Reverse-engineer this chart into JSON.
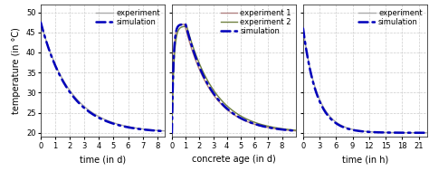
{
  "panel1": {
    "xlabel": "time (in d)",
    "xlim": [
      0,
      8.5
    ],
    "ylim": [
      19,
      52
    ],
    "xticks": [
      0,
      1,
      2,
      3,
      4,
      5,
      6,
      7,
      8
    ],
    "yticks": [
      20,
      25,
      30,
      35,
      40,
      45,
      50
    ],
    "t0": 47.5,
    "t_ambient": 20.0,
    "decay_exp": 0.48,
    "decay_sim": 0.5,
    "legend": [
      [
        "experiment",
        "#aaaaaa",
        "-",
        1.0
      ],
      [
        "simulation",
        "#0000bb",
        "-.",
        1.8
      ]
    ]
  },
  "panel2": {
    "xlabel": "concrete age (in d)",
    "xlim": [
      0,
      9.0
    ],
    "ylim": [
      19,
      52
    ],
    "xticks": [
      0,
      1,
      2,
      3,
      4,
      5,
      6,
      7,
      8
    ],
    "yticks": [
      20,
      25,
      30,
      35,
      40,
      45,
      50
    ],
    "peak_time": 1.0,
    "peak_temp1": 47.0,
    "peak_temp2": 46.5,
    "peak_temp_sim": 47.0,
    "t_ambient": 20.0,
    "rise_rate1": 9.0,
    "rise_rate2": 7.0,
    "decay_rate1": 0.5,
    "decay_rate2": 0.47,
    "decay_rate_sim": 0.5,
    "legend": [
      [
        "experiment 1",
        "#b08080",
        "-",
        1.0
      ],
      [
        "experiment 2",
        "#708040",
        "-",
        1.0
      ],
      [
        "simulation",
        "#0000bb",
        "-.",
        1.8
      ]
    ]
  },
  "panel3": {
    "xlabel": "time (in h)",
    "xlim": [
      0,
      22.5
    ],
    "ylim": [
      19,
      52
    ],
    "xticks": [
      0,
      3,
      6,
      9,
      12,
      15,
      18,
      21
    ],
    "yticks": [
      20,
      25,
      30,
      35,
      40,
      45,
      50
    ],
    "t0": 46.0,
    "t_ambient": 20.0,
    "decay_exp": 0.38,
    "decay_sim": 0.4,
    "legend": [
      [
        "experiment",
        "#aaaaaa",
        "-",
        1.0
      ],
      [
        "simulation",
        "#0000bb",
        "-.",
        1.8
      ]
    ]
  },
  "background_color": "#ffffff",
  "grid_color": "#cccccc",
  "ylabel": "temperature (in °C)",
  "tick_fontsize": 6.0,
  "label_fontsize": 7.0,
  "legend_fontsize": 6.0
}
